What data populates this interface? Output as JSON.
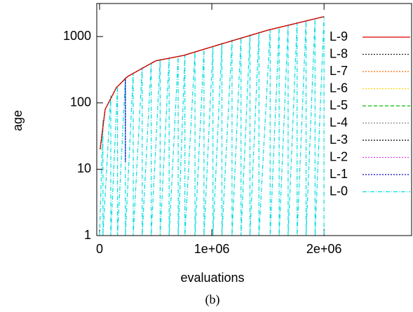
{
  "chart_data": {
    "type": "line",
    "caption": "(b)",
    "xlabel": "evaluations",
    "ylabel": "age",
    "xlim": [
      -25000,
      2780000
    ],
    "ylim": [
      1,
      3150
    ],
    "log_y": true,
    "legend": "right",
    "xticks": [
      0,
      {
        "value": 1000000,
        "label": "1e+06"
      },
      {
        "value": 2000000,
        "label": "2e+06"
      }
    ],
    "yticks": [
      1,
      10,
      100,
      1000
    ],
    "series": [
      {
        "name": "L-9",
        "color": "#dd0000",
        "dash": "none",
        "x": [
          5000,
          50000,
          150000,
          250000,
          500000,
          750000,
          1000000,
          1500000,
          2000000
        ],
        "values": [
          20,
          80,
          170,
          250,
          430,
          520,
          700,
          1250,
          2000
        ]
      },
      {
        "name": "L-8",
        "color": "#222222",
        "dash": "2,2",
        "x": [
          5000,
          50000,
          150000,
          250000,
          500000,
          750000,
          1000000,
          1500000,
          2000000
        ],
        "values": [
          20,
          80,
          170,
          250,
          430,
          520,
          700,
          1250,
          2000
        ]
      },
      {
        "name": "L-7",
        "color": "#ff6600",
        "dash": "2,2",
        "x": [
          5000,
          50000,
          150000,
          250000,
          500000,
          750000,
          1000000,
          1500000,
          2000000
        ],
        "values": [
          20,
          80,
          170,
          250,
          430,
          520,
          700,
          1250,
          2000
        ]
      },
      {
        "name": "L-6",
        "color": "#ffd700",
        "dash": "2,2",
        "x": [
          5000,
          50000,
          150000,
          250000,
          500000,
          750000,
          1000000,
          1500000,
          2000000
        ],
        "values": [
          20,
          80,
          170,
          250,
          430,
          520,
          700,
          1250,
          2000
        ]
      },
      {
        "name": "L-5",
        "color": "#00c000",
        "dash": "5,3",
        "x": [
          5000,
          50000,
          150000,
          250000,
          500000,
          750000,
          1000000,
          1500000,
          2000000
        ],
        "values": [
          20,
          80,
          170,
          250,
          430,
          520,
          700,
          1250,
          2000
        ]
      },
      {
        "name": "L-4",
        "color": "#888888",
        "dash": "2,2",
        "x": [
          5000,
          50000,
          150000,
          250000,
          500000,
          750000,
          1000000,
          1500000,
          2000000
        ],
        "values": [
          20,
          80,
          170,
          250,
          430,
          520,
          700,
          1250,
          2000
        ]
      },
      {
        "name": "L-3",
        "color": "#000000",
        "dash": "2,2",
        "x": [
          5000,
          50000,
          150000,
          250000,
          500000,
          750000,
          1000000,
          1500000,
          2000000
        ],
        "values": [
          20,
          80,
          170,
          250,
          430,
          520,
          700,
          1250,
          2000
        ]
      },
      {
        "name": "L-2",
        "color": "#e040e0",
        "dash": "2,2",
        "x": [
          5000,
          50000,
          150000,
          250000,
          500000,
          750000,
          1000000,
          1500000,
          2000000
        ],
        "values": [
          20,
          80,
          170,
          250,
          430,
          520,
          700,
          1250,
          2000
        ]
      },
      {
        "name": "L-1",
        "color": "#0000c0",
        "dash": "2,2",
        "x": [
          5000,
          50000,
          150000,
          230000,
          230000,
          230000,
          250000,
          500000,
          750000,
          1000000,
          1500000,
          2000000
        ],
        "values": [
          20,
          80,
          170,
          235,
          13,
          235,
          250,
          430,
          520,
          700,
          1250,
          2000
        ]
      },
      {
        "name": "L-0",
        "color": "#00dddd",
        "dash": "6,2,1,2",
        "x": [
          0,
          30000,
          30000,
          100000,
          100000,
          160000,
          160000,
          230000,
          230000,
          300000,
          300000,
          380000,
          380000,
          460000,
          460000,
          540000,
          540000,
          620000,
          620000,
          700000,
          700000,
          760000,
          760000,
          850000,
          850000,
          930000,
          930000,
          1010000,
          1010000,
          1090000,
          1090000,
          1180000,
          1180000,
          1260000,
          1260000,
          1340000,
          1340000,
          1420000,
          1420000,
          1520000,
          1520000,
          1600000,
          1600000,
          1680000,
          1680000,
          1760000,
          1760000,
          1840000,
          1840000,
          1920000,
          1920000,
          2000000,
          2000000
        ],
        "values": [
          1,
          55,
          1,
          130,
          1,
          180,
          1,
          235,
          1,
          285,
          1,
          345,
          1,
          400,
          1,
          445,
          1,
          485,
          1,
          500,
          1,
          525,
          1,
          590,
          1,
          650,
          1,
          710,
          1,
          800,
          1,
          900,
          1,
          990,
          1,
          1080,
          1,
          1160,
          1,
          1270,
          1,
          1380,
          1,
          1500,
          1,
          1620,
          1,
          1750,
          1,
          1870,
          1,
          2000,
          1
        ]
      }
    ]
  }
}
